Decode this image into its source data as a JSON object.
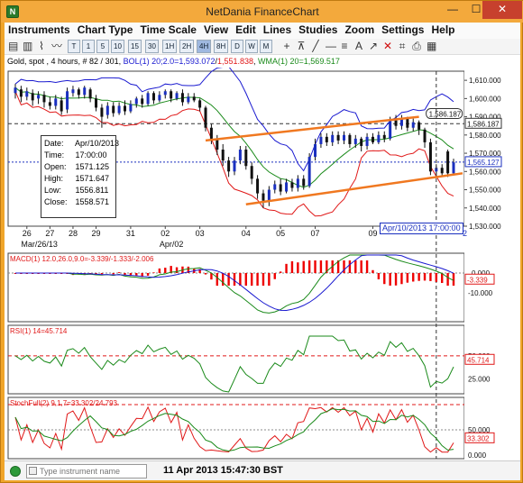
{
  "window": {
    "title": "NetDania FinanceChart",
    "minimize": "—",
    "maximize": "☐",
    "close": "✕",
    "app_icon": "N"
  },
  "menu": [
    "Instruments",
    "Chart Type",
    "Time Scale",
    "View",
    "Edit",
    "Lines",
    "Studies",
    "Zoom",
    "Settings",
    "Help"
  ],
  "toolbar": {
    "chart_buttons": [
      "▤",
      "▥",
      "⌇",
      "〰"
    ],
    "timescale_buttons": [
      "T",
      "1",
      "5",
      "10",
      "15",
      "30",
      "1H",
      "2H",
      "4H",
      "8H",
      "D",
      "W",
      "M"
    ],
    "selected_timescale": "4H"
  },
  "infobar": {
    "instrument": "Gold, spot , 4 hours, # 82 / 301,",
    "bol_label": "BOL(1) 20;2.0=",
    "bol_upper": "1,593.072",
    "bol_lower": "1,551.838",
    "wma_label": "WMA(1) 20=",
    "wma_value": "1,569.517",
    "colors": {
      "bol": "#1a1ad0",
      "bol_lower": "#e01818",
      "wma": "#1a8a1a"
    }
  },
  "infobox": {
    "date_label": "Date:",
    "date": "Apr/10/2013",
    "time_label": "Time:",
    "time": "17:00:00",
    "open_label": "Open:",
    "open": "1571.125",
    "high_label": "High:",
    "high": "1571.647",
    "low_label": "Low:",
    "low": "1556.811",
    "close_label": "Close:",
    "close": "1558.571"
  },
  "price_axis": {
    "ticks": [
      "1,610.000",
      "1,600.000",
      "1,590.000",
      "1,580.000",
      "1,570.000",
      "1,560.000",
      "1,550.000",
      "1,540.000",
      "1,530.000"
    ],
    "label_hline": "1,586.187",
    "label_current": "1,565.127",
    "callout": "1,586.187"
  },
  "date_axis": {
    "labels": [
      "26",
      "27",
      "28",
      "29",
      "31",
      "02",
      "03",
      "04",
      "05",
      "07",
      "09"
    ],
    "month_labels": [
      "Mar/26/13",
      "Apr/02"
    ],
    "cursor_date": "Apr/10/2013 17:00:00",
    "cursor_extra": "2"
  },
  "macd": {
    "label": "MACD(1) 12.0,26.0,9.0=-3.339/-1.333/-2.006",
    "ticks": [
      "0.000",
      "-10.000"
    ],
    "current": "-3.339"
  },
  "rsi": {
    "label": "RSI(1) 14=45.714",
    "ticks": [
      "50.000",
      "25.000"
    ],
    "current": "45.714"
  },
  "stoch": {
    "label": "StochFull(2) 9,1,7=33.302/24.793",
    "ticks": [
      "50.000",
      "0.000"
    ],
    "current": "33.302"
  },
  "statusbar": {
    "search_placeholder": "Type instrument name",
    "datetime": "11 Apr 2013 15:47:30 BST"
  },
  "chart_data": {
    "type": "candlestick",
    "instrument": "Gold, spot",
    "interval": "4 hours",
    "ylim": [
      1530,
      1615
    ],
    "candles": [
      {
        "o": 1603,
        "c": 1606,
        "h": 1608,
        "l": 1600
      },
      {
        "o": 1605,
        "c": 1601,
        "h": 1607,
        "l": 1598
      },
      {
        "o": 1601,
        "c": 1604,
        "h": 1606,
        "l": 1599
      },
      {
        "o": 1603,
        "c": 1599,
        "h": 1605,
        "l": 1596
      },
      {
        "o": 1600,
        "c": 1602,
        "h": 1604,
        "l": 1597
      },
      {
        "o": 1602,
        "c": 1598,
        "h": 1604,
        "l": 1595
      },
      {
        "o": 1598,
        "c": 1596,
        "h": 1601,
        "l": 1594
      },
      {
        "o": 1596,
        "c": 1600,
        "h": 1602,
        "l": 1594
      },
      {
        "o": 1599,
        "c": 1593,
        "h": 1601,
        "l": 1591
      },
      {
        "o": 1594,
        "c": 1604,
        "h": 1606,
        "l": 1592
      },
      {
        "o": 1603,
        "c": 1605,
        "h": 1607,
        "l": 1601
      },
      {
        "o": 1605,
        "c": 1602,
        "h": 1606,
        "l": 1600
      },
      {
        "o": 1602,
        "c": 1606,
        "h": 1607,
        "l": 1600
      },
      {
        "o": 1605,
        "c": 1600,
        "h": 1606,
        "l": 1598
      },
      {
        "o": 1600,
        "c": 1595,
        "h": 1602,
        "l": 1593
      },
      {
        "o": 1595,
        "c": 1590,
        "h": 1597,
        "l": 1584
      },
      {
        "o": 1591,
        "c": 1596,
        "h": 1598,
        "l": 1589
      },
      {
        "o": 1596,
        "c": 1592,
        "h": 1598,
        "l": 1590
      },
      {
        "o": 1592,
        "c": 1596,
        "h": 1598,
        "l": 1591
      },
      {
        "o": 1596,
        "c": 1593,
        "h": 1599,
        "l": 1591
      },
      {
        "o": 1593,
        "c": 1597,
        "h": 1599,
        "l": 1592
      },
      {
        "o": 1597,
        "c": 1600,
        "h": 1601,
        "l": 1595
      },
      {
        "o": 1600,
        "c": 1597,
        "h": 1602,
        "l": 1595
      },
      {
        "o": 1597,
        "c": 1603,
        "h": 1604,
        "l": 1596
      },
      {
        "o": 1603,
        "c": 1599,
        "h": 1604,
        "l": 1597
      },
      {
        "o": 1599,
        "c": 1602,
        "h": 1604,
        "l": 1598
      },
      {
        "o": 1602,
        "c": 1604,
        "h": 1605,
        "l": 1600
      },
      {
        "o": 1604,
        "c": 1600,
        "h": 1605,
        "l": 1598
      },
      {
        "o": 1600,
        "c": 1603,
        "h": 1604,
        "l": 1599
      },
      {
        "o": 1603,
        "c": 1598,
        "h": 1605,
        "l": 1596
      },
      {
        "o": 1598,
        "c": 1601,
        "h": 1603,
        "l": 1597
      },
      {
        "o": 1601,
        "c": 1599,
        "h": 1603,
        "l": 1598
      },
      {
        "o": 1599,
        "c": 1595,
        "h": 1600,
        "l": 1593
      },
      {
        "o": 1595,
        "c": 1584,
        "h": 1596,
        "l": 1582
      },
      {
        "o": 1584,
        "c": 1578,
        "h": 1586,
        "l": 1575
      },
      {
        "o": 1578,
        "c": 1572,
        "h": 1580,
        "l": 1569
      },
      {
        "o": 1572,
        "c": 1566,
        "h": 1575,
        "l": 1563
      },
      {
        "o": 1566,
        "c": 1560,
        "h": 1568,
        "l": 1557
      },
      {
        "o": 1560,
        "c": 1566,
        "h": 1568,
        "l": 1558
      },
      {
        "o": 1566,
        "c": 1572,
        "h": 1574,
        "l": 1564
      },
      {
        "o": 1572,
        "c": 1563,
        "h": 1574,
        "l": 1561
      },
      {
        "o": 1563,
        "c": 1556,
        "h": 1565,
        "l": 1553
      },
      {
        "o": 1556,
        "c": 1548,
        "h": 1558,
        "l": 1545
      },
      {
        "o": 1548,
        "c": 1544,
        "h": 1550,
        "l": 1540
      },
      {
        "o": 1544,
        "c": 1550,
        "h": 1552,
        "l": 1541
      },
      {
        "o": 1550,
        "c": 1553,
        "h": 1555,
        "l": 1548
      },
      {
        "o": 1553,
        "c": 1549,
        "h": 1556,
        "l": 1547
      },
      {
        "o": 1549,
        "c": 1554,
        "h": 1556,
        "l": 1548
      },
      {
        "o": 1554,
        "c": 1551,
        "h": 1556,
        "l": 1549
      },
      {
        "o": 1551,
        "c": 1556,
        "h": 1558,
        "l": 1549
      },
      {
        "o": 1556,
        "c": 1552,
        "h": 1558,
        "l": 1550
      },
      {
        "o": 1552,
        "c": 1568,
        "h": 1570,
        "l": 1551
      },
      {
        "o": 1568,
        "c": 1575,
        "h": 1578,
        "l": 1566
      },
      {
        "o": 1575,
        "c": 1579,
        "h": 1581,
        "l": 1573
      },
      {
        "o": 1579,
        "c": 1576,
        "h": 1581,
        "l": 1574
      },
      {
        "o": 1576,
        "c": 1580,
        "h": 1582,
        "l": 1574
      },
      {
        "o": 1580,
        "c": 1577,
        "h": 1582,
        "l": 1575
      },
      {
        "o": 1577,
        "c": 1580,
        "h": 1582,
        "l": 1575
      },
      {
        "o": 1580,
        "c": 1575,
        "h": 1581,
        "l": 1573
      },
      {
        "o": 1575,
        "c": 1578,
        "h": 1580,
        "l": 1573
      },
      {
        "o": 1578,
        "c": 1574,
        "h": 1579,
        "l": 1571
      },
      {
        "o": 1574,
        "c": 1579,
        "h": 1581,
        "l": 1572
      },
      {
        "o": 1579,
        "c": 1576,
        "h": 1581,
        "l": 1575
      },
      {
        "o": 1576,
        "c": 1580,
        "h": 1582,
        "l": 1575
      },
      {
        "o": 1580,
        "c": 1578,
        "h": 1582,
        "l": 1576
      },
      {
        "o": 1578,
        "c": 1588,
        "h": 1590,
        "l": 1577
      },
      {
        "o": 1588,
        "c": 1585,
        "h": 1591,
        "l": 1583
      },
      {
        "o": 1585,
        "c": 1589,
        "h": 1591,
        "l": 1583
      },
      {
        "o": 1589,
        "c": 1584,
        "h": 1590,
        "l": 1582
      },
      {
        "o": 1584,
        "c": 1587,
        "h": 1589,
        "l": 1582
      },
      {
        "o": 1587,
        "c": 1583,
        "h": 1588,
        "l": 1580
      },
      {
        "o": 1583,
        "c": 1576,
        "h": 1584,
        "l": 1573
      },
      {
        "o": 1576,
        "c": 1560,
        "h": 1578,
        "l": 1558
      },
      {
        "o": 1560,
        "c": 1562,
        "h": 1564,
        "l": 1557
      },
      {
        "o": 1562,
        "c": 1559,
        "h": 1564,
        "l": 1557
      },
      {
        "o": 1571,
        "c": 1559,
        "h": 1572,
        "l": 1557
      },
      {
        "o": 1559,
        "c": 1565,
        "h": 1567,
        "l": 1558
      }
    ]
  }
}
